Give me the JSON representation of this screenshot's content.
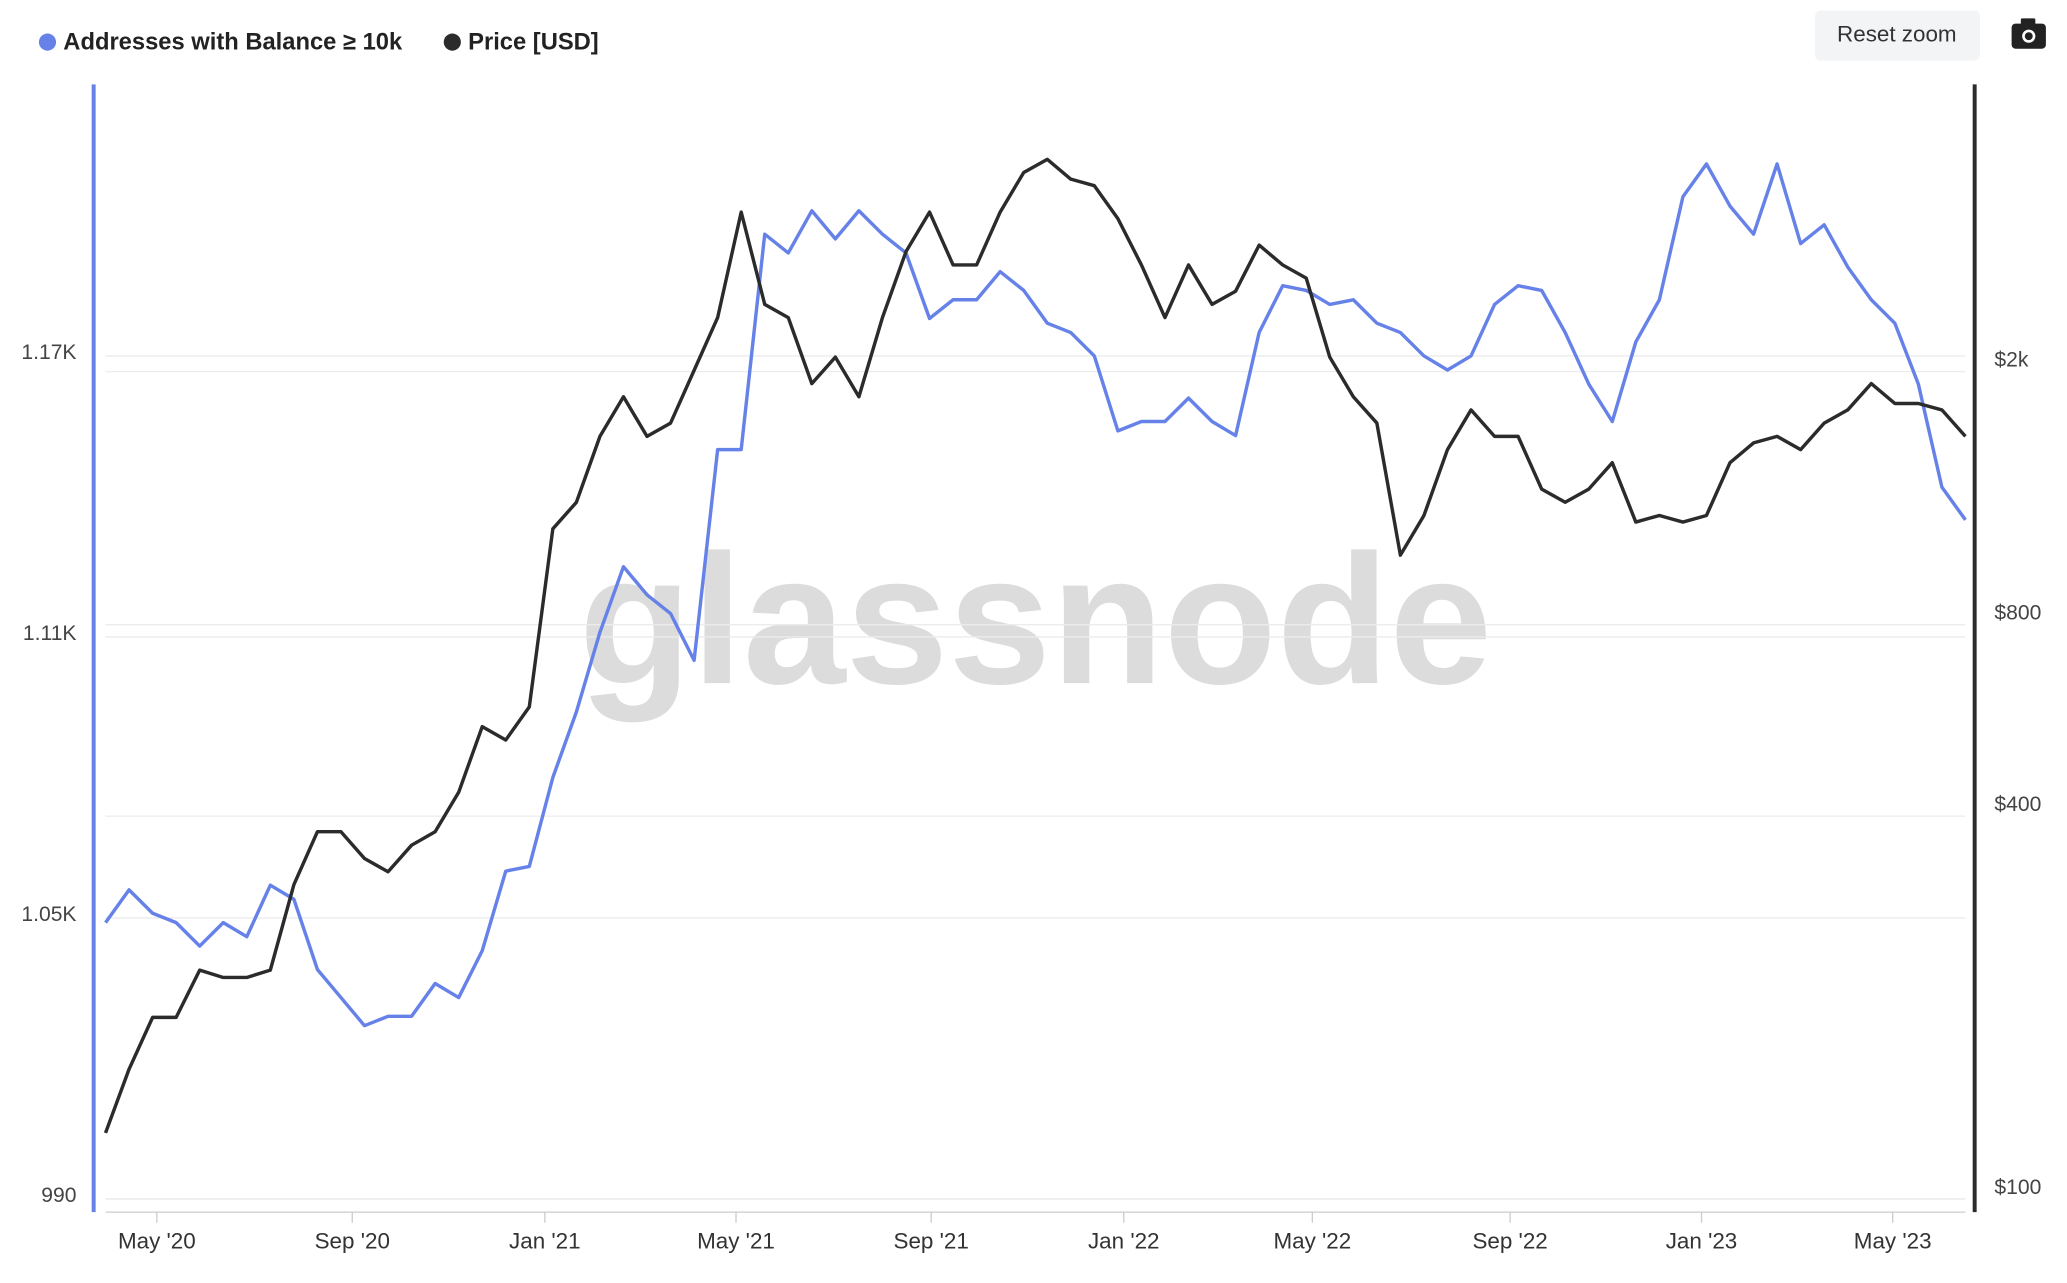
{
  "chart_data": {
    "type": "line",
    "watermark": "glassnode",
    "reset_button": "Reset zoom",
    "categories": [
      null,
      null,
      null,
      null,
      null,
      null,
      null,
      null,
      null,
      null,
      null,
      null,
      null,
      null,
      null,
      null,
      null,
      null,
      null,
      null,
      null,
      null,
      null,
      null,
      null,
      null,
      null,
      null,
      null,
      null,
      null,
      null,
      null,
      null,
      null,
      null,
      null,
      null,
      null,
      null,
      null,
      null,
      null,
      null,
      null,
      null,
      null,
      null,
      null,
      null,
      null,
      null,
      null,
      null,
      null,
      null,
      null,
      null,
      null,
      null,
      null,
      null,
      null,
      null,
      null,
      null,
      null,
      null,
      null,
      null,
      null,
      null,
      null,
      null,
      null,
      null,
      null,
      null,
      null,
      null
    ],
    "xlim": [
      0,
      79
    ],
    "xticks": [
      {
        "value": 2.18,
        "label": "May '20"
      },
      {
        "value": 10.48,
        "label": "Sep '20"
      },
      {
        "value": 18.66,
        "label": "Jan '21"
      },
      {
        "value": 26.78,
        "label": "May '21"
      },
      {
        "value": 35.07,
        "label": "Sep '21"
      },
      {
        "value": 43.25,
        "label": "Jan '22"
      },
      {
        "value": 51.26,
        "label": "May '22"
      },
      {
        "value": 59.66,
        "label": "Sep '22"
      },
      {
        "value": 67.79,
        "label": "Jan '23"
      },
      {
        "value": 75.91,
        "label": "May '23"
      }
    ],
    "ylim": [
      990,
      1228
    ],
    "yticks": [
      990,
      {
        "value": 1050,
        "label": "1.05K"
      },
      {
        "value": 1110,
        "label": "1.11K"
      },
      {
        "value": 1170,
        "label": "1.17K"
      }
    ],
    "y2lim": [
      100,
      5660
    ],
    "y2log": true,
    "y2ticks": [
      {
        "value": 100,
        "label": "$100"
      },
      {
        "value": 400,
        "label": "$400"
      },
      {
        "value": 800,
        "label": "$800"
      },
      {
        "value": 2000,
        "label": "$2k"
      }
    ],
    "grid": true,
    "series": [
      {
        "name": "Addresses with Balance ≥ 10k",
        "color": "#6682e8",
        "values": [
          1049,
          1056,
          1051,
          1049,
          1044,
          1049,
          1046,
          1057,
          1054,
          1039,
          1033,
          1027,
          1029,
          1029,
          1036,
          1033,
          1043,
          1060,
          1061,
          1080,
          1094,
          1111,
          1125,
          1119,
          1115,
          1105,
          1150,
          1150,
          1196,
          1192,
          1201,
          1195,
          1201,
          1196,
          1192,
          1178,
          1182,
          1182,
          1188,
          1184,
          1177,
          1175,
          1170,
          1154,
          1156,
          1156,
          1161,
          1156,
          1153,
          1175,
          1185,
          1184,
          1181,
          1182,
          1177,
          1175,
          1170,
          1167,
          1170,
          1181,
          1185,
          1184,
          1175,
          1164,
          1156,
          1173,
          1182,
          1204,
          1211,
          1202,
          1196,
          1211,
          1194,
          1198,
          1189,
          1182,
          1177,
          1164,
          1142,
          1135
        ]
      },
      {
        "name": "Price [USD]",
        "color": "#2b2b2b",
        "axis": "y2",
        "values": [
          127,
          160,
          193,
          193,
          229,
          223,
          223,
          229,
          312,
          378,
          378,
          343,
          327,
          360,
          378,
          436,
          553,
          527,
          594,
          1132,
          1246,
          1582,
          1826,
          1582,
          1660,
          2009,
          2432,
          3564,
          2551,
          2432,
          1915,
          2108,
          1826,
          2432,
          3088,
          3564,
          2943,
          2943,
          3564,
          4113,
          4314,
          4015,
          3921,
          3480,
          2943,
          2432,
          2943,
          2551,
          2676,
          3162,
          2943,
          2806,
          2108,
          1826,
          1660,
          1029,
          1188,
          1508,
          1741,
          1582,
          1582,
          1307,
          1246,
          1307,
          1438,
          1160,
          1188,
          1160,
          1188,
          1438,
          1545,
          1582,
          1508,
          1660,
          1741,
          1915,
          1782,
          1782,
          1741,
          1582
        ]
      }
    ]
  }
}
